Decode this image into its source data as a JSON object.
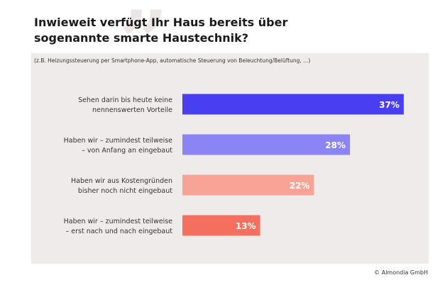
{
  "header": {
    "title_line1": "Inwieweit verfügt Ihr Haus bereits über",
    "title_line2": "sogenannte smarte Haustechnik?",
    "subtitle": "(z.B. Heizungssteuerung  per Smartphone-App,  automatische Steuerung von Beleuchtung/Belüftung, ...)"
  },
  "decoration": {
    "quote_glyph": "”"
  },
  "footer": {
    "copyright": "© Almondia GmbH"
  },
  "chart_data": {
    "type": "bar",
    "orientation": "horizontal",
    "title": "Inwieweit verfügt Ihr Haus bereits über sogenannte smarte Haustechnik?",
    "subtitle": "(z.B. Heizungssteuerung  per Smartphone-App,  automatische Steuerung von Beleuchtung/Belüftung, ...)",
    "categories": [
      [
        "Sehen darin bis heute keine",
        "nennenswerten Vorteile"
      ],
      [
        "Haben wir – zumindest teilweise",
        "– von Anfang an eingebaut"
      ],
      [
        "Haben wir aus Kostengründen",
        "bisher noch nicht eingebaut"
      ],
      [
        "Haben wir – zumindest teilweise",
        "– erst nach und nach eingebaut"
      ]
    ],
    "values": [
      37,
      28,
      22,
      13
    ],
    "value_labels": [
      "37%",
      "28%",
      "22%",
      "13%"
    ],
    "unit": "%",
    "bar_colors": [
      "#4a3ff0",
      "#8b84f5",
      "#f7a396",
      "#f46f5e"
    ],
    "grid": false,
    "legend": "none"
  }
}
